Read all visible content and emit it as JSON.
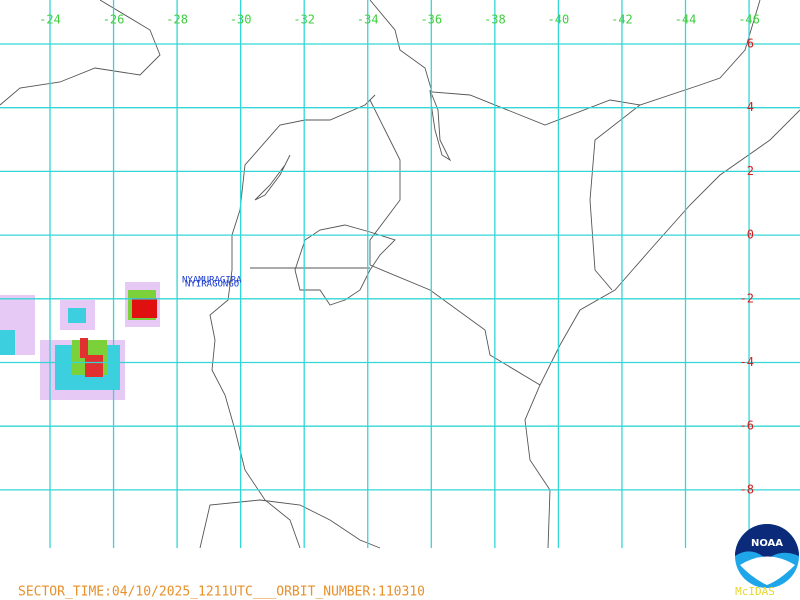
{
  "map": {
    "lon_labels": [
      "-24",
      "-26",
      "-28",
      "-30",
      "-32",
      "-34",
      "-36",
      "-38",
      "-40",
      "-42",
      "-44",
      "-46"
    ],
    "lat_labels": [
      "6",
      "4",
      "2",
      "0",
      "-2",
      "-4",
      "-6",
      "-8"
    ],
    "places": [
      "NYAMURAGIRA",
      "NYIRAGONGO"
    ],
    "footer": "SECTOR_TIME:04/10/2025_1211UTC___ORBIT_NUMBER:110310",
    "software": "McIDAS",
    "logo": "NOAA"
  }
}
